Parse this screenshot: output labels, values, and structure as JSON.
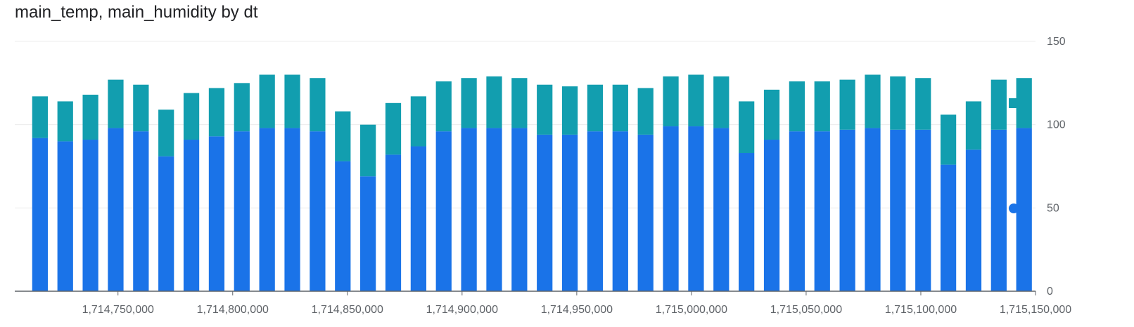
{
  "chart_data": {
    "type": "bar",
    "stacked": true,
    "title": "main_temp, main_humidity by dt",
    "xlabel": "",
    "ylabel": "",
    "ylim": [
      0,
      150
    ],
    "y_ticks": [
      0,
      50,
      100,
      150
    ],
    "xlim": [
      1714705000,
      1715150000
    ],
    "x_ticks": [
      1714750000,
      1714800000,
      1714850000,
      1714900000,
      1714950000,
      1715000000,
      1715050000,
      1715100000,
      1715150000
    ],
    "x_tick_labels": [
      "1,714,750,000",
      "1,714,800,000",
      "1,714,850,000",
      "1,714,900,000",
      "1,714,950,000",
      "1,715,000,000",
      "1,715,050,000",
      "1,715,100,000",
      "1,715,150,000"
    ],
    "y_tick_labels": [
      "0",
      "50",
      "100",
      "150"
    ],
    "grid": true,
    "legend_position": "right",
    "x": [
      1714716000,
      1714727000,
      1714738000,
      1714749000,
      1714760000,
      1714771000,
      1714782000,
      1714793000,
      1714804000,
      1714815000,
      1714826000,
      1714837000,
      1714848000,
      1714859000,
      1714870000,
      1714881000,
      1714892000,
      1714903000,
      1714914000,
      1714925000,
      1714936000,
      1714947000,
      1714958000,
      1714969000,
      1714980000,
      1714991000,
      1715002000,
      1715013000,
      1715024000,
      1715035000,
      1715046000,
      1715057000,
      1715068000,
      1715079000,
      1715090000,
      1715101000,
      1715112000,
      1715123000,
      1715134000,
      1715145000
    ],
    "series": [
      {
        "color": "#1a73e8",
        "values": [
          92,
          90,
          91,
          98,
          96,
          81,
          91,
          93,
          96,
          98,
          98,
          96,
          78,
          69,
          82,
          87,
          96,
          98,
          98,
          98,
          94,
          94,
          96,
          96,
          94,
          99,
          99,
          98,
          83,
          91,
          96,
          96,
          97,
          98,
          97,
          97,
          76,
          85,
          97,
          98
        ]
      },
      {
        "color": "#129eaf",
        "values": [
          25,
          24,
          27,
          29,
          28,
          28,
          28,
          29,
          29,
          32,
          32,
          32,
          30,
          31,
          31,
          30,
          30,
          30,
          31,
          30,
          30,
          29,
          28,
          28,
          28,
          30,
          31,
          31,
          31,
          30,
          30,
          30,
          30,
          32,
          32,
          31,
          30,
          29,
          30,
          30
        ]
      }
    ],
    "legend_markers": [
      {
        "shape": "square",
        "color": "#129eaf"
      },
      {
        "shape": "circle",
        "color": "#1a73e8"
      }
    ]
  }
}
